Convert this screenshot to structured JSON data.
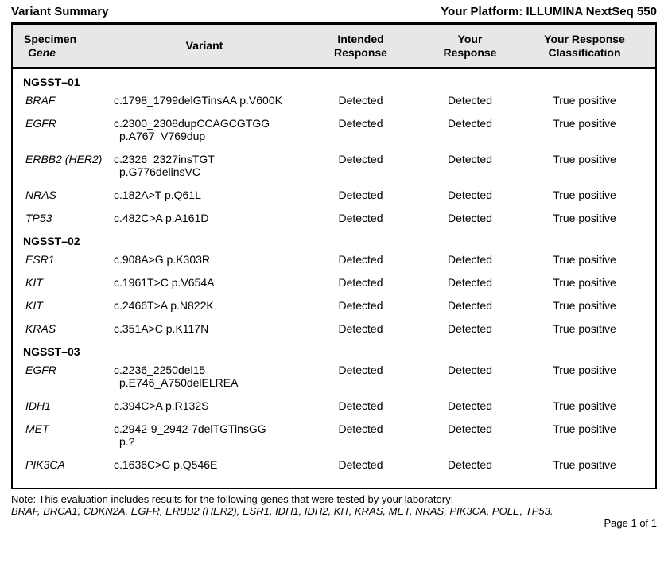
{
  "page": {
    "title": "Variant Summary",
    "platform": "Your Platform: ILLUMINA NextSeq 550",
    "note_line1": "Note: This evaluation includes results for the following genes that were tested by your laboratory:",
    "note_line2": "BRAF, BRCA1, CDKN2A, EGFR, ERBB2 (HER2), ESR1, IDH1, IDH2, KIT, KRAS, MET, NRAS, PIK3CA, POLE, TP53.",
    "page_label": "Page 1 of 1"
  },
  "colors": {
    "header_bg": "#e7e7e7",
    "border": "#000000",
    "text": "#000000"
  },
  "table": {
    "headers": {
      "specimen_line1": "Specimen",
      "specimen_line2": "Gene",
      "variant": "Variant",
      "intended_line1": "Intended",
      "intended_line2": "Response",
      "your_line1": "Your",
      "your_line2": "Response",
      "classification_line1": "Your Response",
      "classification_line2": "Classification"
    },
    "groups": [
      {
        "specimen": "NGSST–01",
        "rows": [
          {
            "gene": "BRAF",
            "variant": [
              "c.1798_1799delGTinsAA p.V600K"
            ],
            "intended": "Detected",
            "your": "Detected",
            "classification": "True positive"
          },
          {
            "gene": "EGFR",
            "variant": [
              "c.2300_2308dupCCAGCGTGG",
              "p.A767_V769dup"
            ],
            "intended": "Detected",
            "your": "Detected",
            "classification": "True positive"
          },
          {
            "gene": "ERBB2 (HER2)",
            "variant": [
              "c.2326_2327insTGT",
              "p.G776delinsVC"
            ],
            "intended": "Detected",
            "your": "Detected",
            "classification": "True positive"
          },
          {
            "gene": "NRAS",
            "variant": [
              "c.182A>T p.Q61L"
            ],
            "intended": "Detected",
            "your": "Detected",
            "classification": "True positive"
          },
          {
            "gene": "TP53",
            "variant": [
              "c.482C>A p.A161D"
            ],
            "intended": "Detected",
            "your": "Detected",
            "classification": "True positive"
          }
        ]
      },
      {
        "specimen": "NGSST–02",
        "rows": [
          {
            "gene": "ESR1",
            "variant": [
              "c.908A>G p.K303R"
            ],
            "intended": "Detected",
            "your": "Detected",
            "classification": "True positive"
          },
          {
            "gene": "KIT",
            "variant": [
              "c.1961T>C p.V654A"
            ],
            "intended": "Detected",
            "your": "Detected",
            "classification": "True positive"
          },
          {
            "gene": "KIT",
            "variant": [
              "c.2466T>A p.N822K"
            ],
            "intended": "Detected",
            "your": "Detected",
            "classification": "True positive"
          },
          {
            "gene": "KRAS",
            "variant": [
              "c.351A>C p.K117N"
            ],
            "intended": "Detected",
            "your": "Detected",
            "classification": "True positive"
          }
        ]
      },
      {
        "specimen": "NGSST–03",
        "rows": [
          {
            "gene": "EGFR",
            "variant": [
              "c.2236_2250del15",
              "p.E746_A750delELREA"
            ],
            "intended": "Detected",
            "your": "Detected",
            "classification": "True positive"
          },
          {
            "gene": "IDH1",
            "variant": [
              "c.394C>A p.R132S"
            ],
            "intended": "Detected",
            "your": "Detected",
            "classification": "True positive"
          },
          {
            "gene": "MET",
            "variant": [
              "c.2942-9_2942-7delTGTinsGG",
              "p.?"
            ],
            "intended": "Detected",
            "your": "Detected",
            "classification": "True positive"
          },
          {
            "gene": "PIK3CA",
            "variant": [
              "c.1636C>G p.Q546E"
            ],
            "intended": "Detected",
            "your": "Detected",
            "classification": "True positive"
          }
        ]
      }
    ]
  }
}
